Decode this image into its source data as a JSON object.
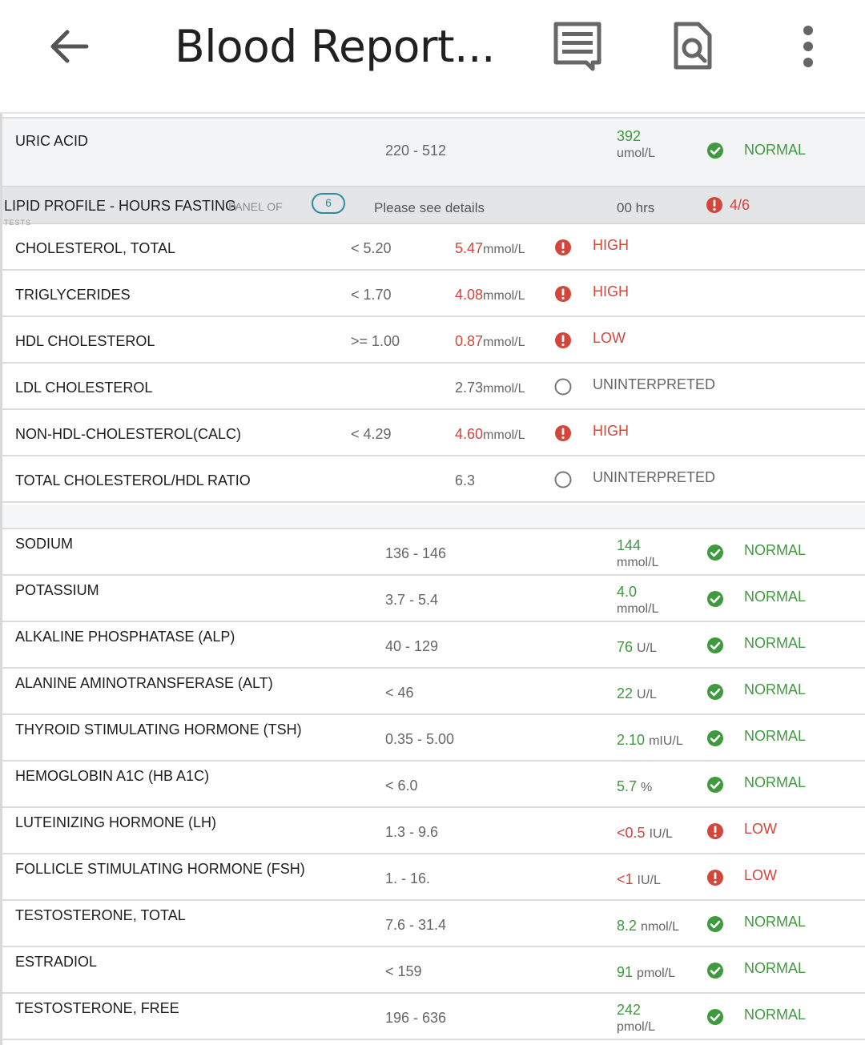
{
  "app": {
    "title": "Blood Report...",
    "icons": [
      "back-arrow-icon",
      "message-icon",
      "document-search-icon",
      "more-vert-icon"
    ]
  },
  "colors": {
    "normal": "#3f9a3f",
    "abnormal": "#d2463b",
    "panel_badge": "#2b8da3"
  },
  "uric_acid": {
    "name": "URIC ACID",
    "range": "220 - 512",
    "value": "392",
    "unit": "umol/L",
    "status": "NORMAL"
  },
  "lipid_panel": {
    "title": "LIPID PROFILE - HOURS FASTING",
    "subtitle": "PANEL OF",
    "subtitle_cut": "TESTS",
    "count_badge": "6",
    "details": "Please see details",
    "hours": "00 hrs",
    "abnormal_count": "4/6",
    "tests": [
      {
        "name": "CHOLESTEROL, TOTAL",
        "range": "< 5.20",
        "value": "5.47",
        "unit": "mmol/L",
        "status": "HIGH"
      },
      {
        "name": "TRIGLYCERIDES",
        "range": "< 1.70",
        "value": "4.08",
        "unit": "mmol/L",
        "status": "HIGH"
      },
      {
        "name": "HDL CHOLESTEROL",
        "range": ">= 1.00",
        "value": "0.87",
        "unit": "mmol/L",
        "status": "LOW"
      },
      {
        "name": "LDL CHOLESTEROL",
        "range": "",
        "value": "2.73",
        "unit": "mmol/L",
        "status": "UNINTERPRETED"
      },
      {
        "name": "NON-HDL-CHOLESTEROL(CALC)",
        "range": "< 4.29",
        "value": "4.60",
        "unit": "mmol/L",
        "status": "HIGH"
      },
      {
        "name": "TOTAL CHOLESTEROL/HDL RATIO",
        "range": "",
        "value": "6.3",
        "unit": "",
        "status": "UNINTERPRETED"
      }
    ]
  },
  "results": [
    {
      "name": "SODIUM",
      "range": "136 - 146",
      "value": "144",
      "unit": "mmol/L",
      "status": "NORMAL"
    },
    {
      "name": "POTASSIUM",
      "range": "3.7 - 5.4",
      "value": "4.0",
      "unit": "mmol/L",
      "status": "NORMAL"
    },
    {
      "name": "ALKALINE PHOSPHATASE (ALP)",
      "range": "40 - 129",
      "value": "76",
      "unit": "U/L",
      "status": "NORMAL"
    },
    {
      "name": "ALANINE AMINOTRANSFERASE (ALT)",
      "range": "< 46",
      "value": "22",
      "unit": "U/L",
      "status": "NORMAL"
    },
    {
      "name": "THYROID STIMULATING HORMONE (TSH)",
      "range": "0.35 - 5.00",
      "value": "2.10",
      "unit": "mIU/L",
      "status": "NORMAL"
    },
    {
      "name": "HEMOGLOBIN A1C (HB A1C)",
      "range": "< 6.0",
      "value": "5.7",
      "unit": "%",
      "status": "NORMAL"
    },
    {
      "name": "LUTEINIZING HORMONE (LH)",
      "range": "1.3 - 9.6",
      "value": "<0.5",
      "unit": "IU/L",
      "status": "LOW"
    },
    {
      "name": "FOLLICLE STIMULATING HORMONE (FSH)",
      "range": "1. - 16.",
      "value": "<1",
      "unit": "IU/L",
      "status": "LOW"
    },
    {
      "name": "TESTOSTERONE, TOTAL",
      "range": "7.6 - 31.4",
      "value": "8.2",
      "unit": "nmol/L",
      "status": "NORMAL"
    },
    {
      "name": "ESTRADIOL",
      "range": "< 159",
      "value": "91",
      "unit": "pmol/L",
      "status": "NORMAL"
    },
    {
      "name": "TESTOSTERONE, FREE",
      "range": "196 - 636",
      "value": "242",
      "unit": "pmol/L",
      "status": "NORMAL"
    }
  ]
}
